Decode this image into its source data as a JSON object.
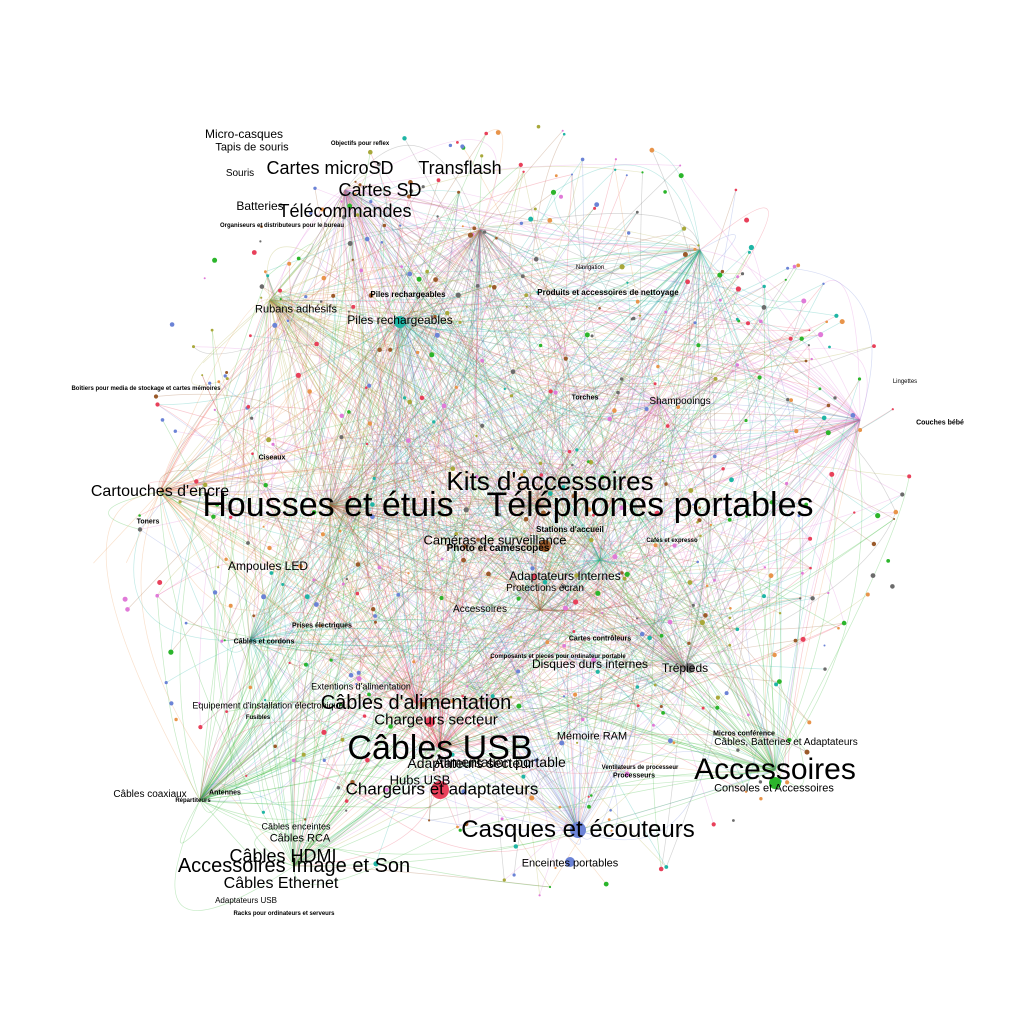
{
  "graph": {
    "palette": {
      "green": "#2bb52b",
      "pink": "#e07ad8",
      "teal": "#1fb5a5",
      "brown": "#9a5a2a",
      "blue": "#6b83d6",
      "red": "#e8405a",
      "grey": "#6b6b6b",
      "olive": "#a8a83a",
      "orange": "#e8944a"
    },
    "labels": [
      {
        "text": "Housses et étuis",
        "size": 34
      },
      {
        "text": "Téléphones portables",
        "size": 34
      },
      {
        "text": "Kits d'accessoires",
        "size": 26
      },
      {
        "text": "Câbles USB",
        "size": 34
      },
      {
        "text": "Accessoires",
        "size": 30
      },
      {
        "text": "Casques et écouteurs",
        "size": 24
      },
      {
        "text": "Câbles d'alimentation",
        "size": 20
      },
      {
        "text": "Chargeurs et adaptateurs",
        "size": 17
      },
      {
        "text": "Cartes microSD",
        "size": 18
      },
      {
        "text": "Transflash",
        "size": 18
      },
      {
        "text": "Cartes SD",
        "size": 18
      },
      {
        "text": "Télécommandes",
        "size": 18
      },
      {
        "text": "Cartouches d'encre",
        "size": 16
      },
      {
        "text": "Accessoires Image et Son",
        "size": 20
      },
      {
        "text": "Câbles HDMI",
        "size": 18
      },
      {
        "text": "Câbles Ethernet",
        "size": 16
      },
      {
        "text": "Chargeurs secteur",
        "size": 15
      },
      {
        "text": "Alimentation portable",
        "size": 14
      },
      {
        "text": "Hubs USB",
        "size": 13
      },
      {
        "text": "Piles rechargeables",
        "size": 12
      },
      {
        "text": "Rubans adhésifs",
        "size": 11
      },
      {
        "text": "Caméras de surveillance",
        "size": 13
      },
      {
        "text": "Adaptateurs Internes",
        "size": 12
      },
      {
        "text": "Disques durs internes",
        "size": 12
      },
      {
        "text": "Trépieds",
        "size": 12
      },
      {
        "text": "Mémoire RAM",
        "size": 11
      },
      {
        "text": "Câbles, Batteries et Adaptateurs",
        "size": 10
      },
      {
        "text": "Consoles et Accessoires",
        "size": 11
      },
      {
        "text": "Enceintes portables",
        "size": 11
      },
      {
        "text": "Câbles coaxiaux",
        "size": 10
      },
      {
        "text": "Câbles enceintes",
        "size": 9
      },
      {
        "text": "Câbles RCA",
        "size": 11
      },
      {
        "text": "Ampoules LED",
        "size": 12
      },
      {
        "text": "Tapis de souris",
        "size": 11
      },
      {
        "text": "Souris",
        "size": 10
      },
      {
        "text": "Batteries",
        "size": 12
      },
      {
        "text": "Micro-casques",
        "size": 12
      },
      {
        "text": "Shampooings",
        "size": 10
      },
      {
        "text": "Produits et accessoires de nettoyage",
        "size": 8
      },
      {
        "text": "Couches bébé",
        "size": 7
      },
      {
        "text": "Extentions d'alimentation",
        "size": 9
      },
      {
        "text": "Equipement d'installation électronique",
        "size": 9
      },
      {
        "text": "Piles rechargeables",
        "size": 8
      },
      {
        "text": "Boîtiers pour media de stockage et cartes mémoires",
        "size": 6
      },
      {
        "text": "Toners",
        "size": 7
      },
      {
        "text": "Ciseaux",
        "size": 7
      },
      {
        "text": "Câbles et cordons",
        "size": 7
      },
      {
        "text": "Prises électriques",
        "size": 7
      },
      {
        "text": "Fusibles",
        "size": 6
      },
      {
        "text": "Cafés et expresso",
        "size": 6
      },
      {
        "text": "Cartes contrôleurs",
        "size": 7
      },
      {
        "text": "Micros conférence",
        "size": 7
      },
      {
        "text": "Processeurs",
        "size": 7
      },
      {
        "text": "Ventilateurs de processeur",
        "size": 6
      },
      {
        "text": "Adaptateurs USB",
        "size": 8
      },
      {
        "text": "Racks pour ordinateurs et serveurs",
        "size": 6
      },
      {
        "text": "Répartiteurs",
        "size": 6
      },
      {
        "text": "Antennes",
        "size": 7
      },
      {
        "text": "Torches",
        "size": 7
      },
      {
        "text": "Navigation",
        "size": 6
      },
      {
        "text": "Lingettes",
        "size": 6
      },
      {
        "text": "Photo et caméscopes",
        "size": 10
      },
      {
        "text": "Protections écran",
        "size": 10
      },
      {
        "text": "Stations d'accueil",
        "size": 8
      },
      {
        "text": "Composants et pièces pour ordinateur portable",
        "size": 6
      },
      {
        "text": "Accessoires",
        "size": 10
      },
      {
        "text": "Adaptateurs secteur",
        "size": 14
      },
      {
        "text": "Organiseurs et distributeurs pour le bureau",
        "size": 6
      },
      {
        "text": "Objectifs pour reflex",
        "size": 6
      }
    ]
  }
}
